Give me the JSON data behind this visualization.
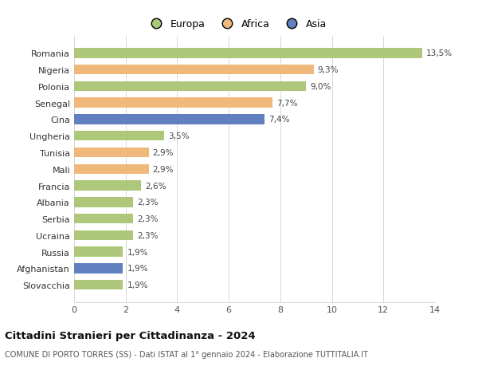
{
  "countries": [
    "Romania",
    "Nigeria",
    "Polonia",
    "Senegal",
    "Cina",
    "Ungheria",
    "Tunisia",
    "Mali",
    "Francia",
    "Albania",
    "Serbia",
    "Ucraina",
    "Russia",
    "Afghanistan",
    "Slovacchia"
  ],
  "values": [
    13.5,
    9.3,
    9.0,
    7.7,
    7.4,
    3.5,
    2.9,
    2.9,
    2.6,
    2.3,
    2.3,
    2.3,
    1.9,
    1.9,
    1.9
  ],
  "labels": [
    "13,5%",
    "9,3%",
    "9,0%",
    "7,7%",
    "7,4%",
    "3,5%",
    "2,9%",
    "2,9%",
    "2,6%",
    "2,3%",
    "2,3%",
    "2,3%",
    "1,9%",
    "1,9%",
    "1,9%"
  ],
  "continents": [
    "Europa",
    "Africa",
    "Europa",
    "Africa",
    "Asia",
    "Europa",
    "Africa",
    "Africa",
    "Europa",
    "Europa",
    "Europa",
    "Europa",
    "Europa",
    "Asia",
    "Europa"
  ],
  "colors": {
    "Europa": "#adc87a",
    "Africa": "#f0b87a",
    "Asia": "#6080c0"
  },
  "title": "Cittadini Stranieri per Cittadinanza - 2024",
  "subtitle": "COMUNE DI PORTO TORRES (SS) - Dati ISTAT al 1° gennaio 2024 - Elaborazione TUTTITALIA.IT",
  "xlim": [
    0,
    14
  ],
  "xticks": [
    0,
    2,
    4,
    6,
    8,
    10,
    12,
    14
  ],
  "background_color": "#ffffff",
  "grid_color": "#d8d8d8"
}
